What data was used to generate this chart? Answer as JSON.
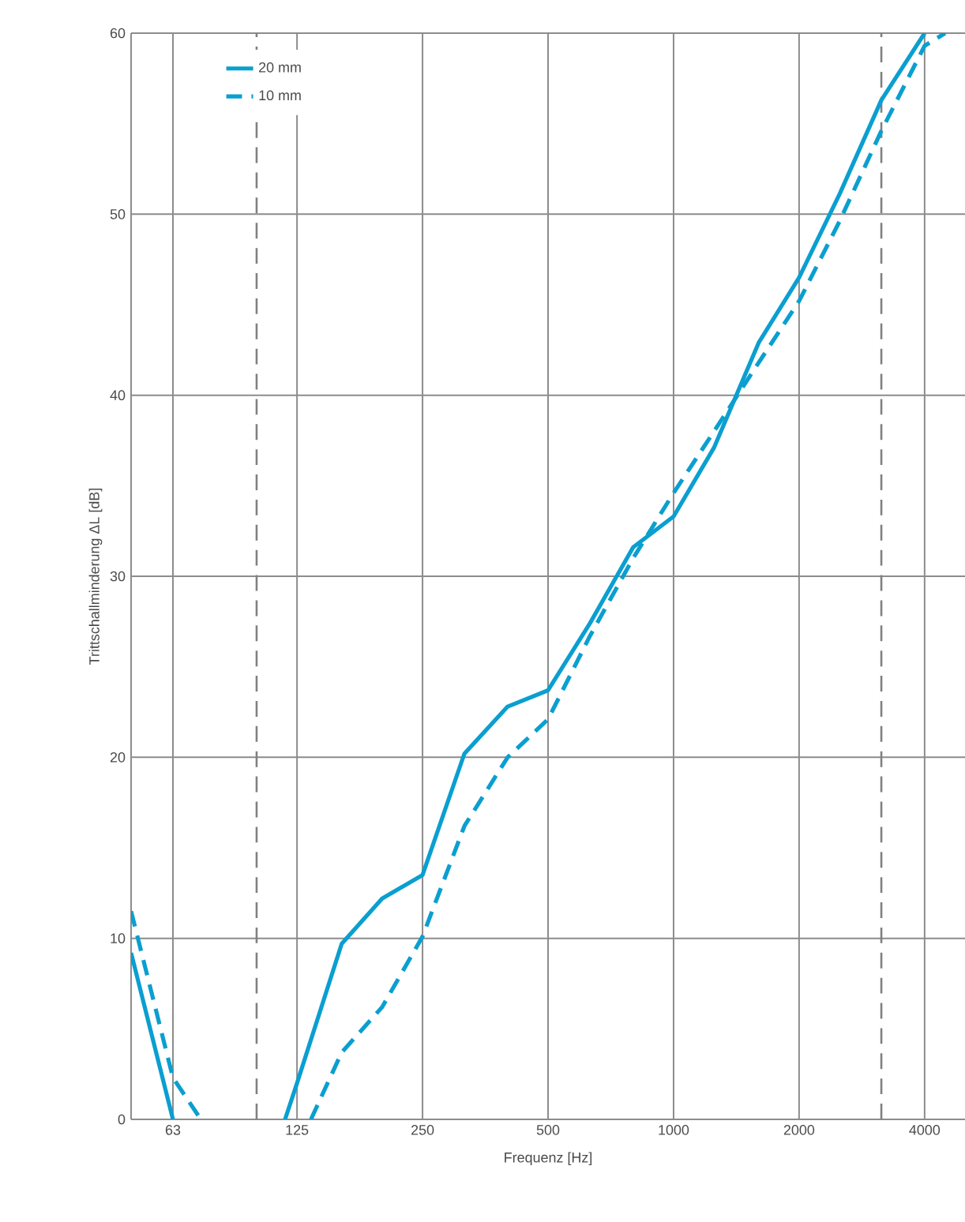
{
  "chart_data": {
    "type": "line",
    "xlabel": "Frequenz [Hz]",
    "ylabel": "Trittschallminderung ΔL [dB]",
    "log": "x",
    "xlim": [
      50,
      5000
    ],
    "ylim": [
      0,
      60
    ],
    "xticks": [
      63,
      125,
      250,
      500,
      1000,
      2000,
      4000
    ],
    "yticks": [
      0,
      10,
      20,
      30,
      40,
      50,
      60
    ],
    "grid": true,
    "legend": "top left",
    "marker": "none",
    "ref_lines": [
      {
        "axis": "x",
        "value": 100,
        "color": "#808080",
        "line_style": "dashed"
      },
      {
        "axis": "x",
        "value": 3150,
        "color": "#808080",
        "line_style": "dashed"
      }
    ],
    "series": [
      {
        "name": "20 mm",
        "color": "#0a9fd0",
        "line_style": "solid",
        "x": [
          50,
          63,
          80,
          100,
          117,
          125,
          160,
          200,
          250,
          315,
          400,
          500,
          630,
          800,
          1000,
          1250,
          1600,
          2000,
          2500,
          3150,
          4000
        ],
        "values": [
          9.2,
          0,
          null,
          null,
          0,
          2.0,
          9.7,
          12.2,
          13.5,
          20.2,
          22.8,
          23.7,
          27.4,
          31.6,
          33.3,
          37.1,
          42.9,
          46.5,
          51.1,
          56.3,
          60
        ]
      },
      {
        "name": "10 mm",
        "color": "#0a9fd0",
        "line_style": "dashed",
        "x": [
          50,
          63,
          73.5,
          80,
          100,
          125,
          135,
          160,
          200,
          250,
          315,
          400,
          500,
          630,
          800,
          1000,
          1250,
          1600,
          2000,
          2500,
          3150,
          4000,
          4480
        ],
        "values": [
          11.5,
          2.3,
          0,
          null,
          null,
          null,
          0,
          3.7,
          6.2,
          10.1,
          16.2,
          20.0,
          22.1,
          26.7,
          31.0,
          34.6,
          38.0,
          41.8,
          45.2,
          49.6,
          54.6,
          59.3,
          60
        ]
      }
    ]
  }
}
